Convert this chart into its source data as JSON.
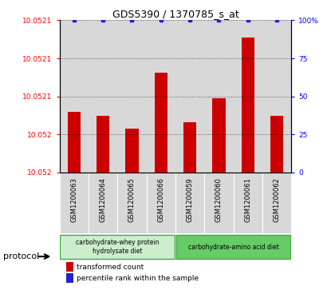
{
  "title": "GDS5390 / 1370785_s_at",
  "samples": [
    "GSM1200063",
    "GSM1200064",
    "GSM1200065",
    "GSM1200066",
    "GSM1200059",
    "GSM1200060",
    "GSM1200061",
    "GSM1200062"
  ],
  "transformed_counts": [
    10.05204,
    10.05203,
    10.052001,
    10.05213,
    10.052015,
    10.05207,
    10.05221,
    10.05203
  ],
  "percentile_ranks": [
    100,
    100,
    100,
    100,
    100,
    100,
    100,
    100
  ],
  "ymin": 10.0519,
  "ymax": 10.05225,
  "ytick_vals": [
    10.052,
    10.052,
    10.0521,
    10.0521,
    10.0521
  ],
  "ytick_labels": [
    "10.052",
    "10.052",
    "10.0521",
    "10.0521",
    "10.0521"
  ],
  "right_ytick_vals": [
    0,
    25,
    50,
    75,
    100
  ],
  "right_ytick_labels": [
    "0",
    "25",
    "50",
    "75",
    "100%"
  ],
  "bar_color": "#CC0000",
  "dot_color": "#2222CC",
  "col_bg_color": "#d8d8d8",
  "group1_label": "carbohydrate-whey protein\nhydrolysate diet",
  "group2_label": "carbohydrate-amino acid diet",
  "group1_color": "#cceecc",
  "group2_color": "#66cc66",
  "group1_samples": [
    0,
    1,
    2,
    3
  ],
  "group2_samples": [
    4,
    5,
    6,
    7
  ],
  "protocol_label": "protocol",
  "legend1": "transformed count",
  "legend2": "percentile rank within the sample",
  "fig_width": 4.15,
  "fig_height": 3.63,
  "dpi": 100
}
